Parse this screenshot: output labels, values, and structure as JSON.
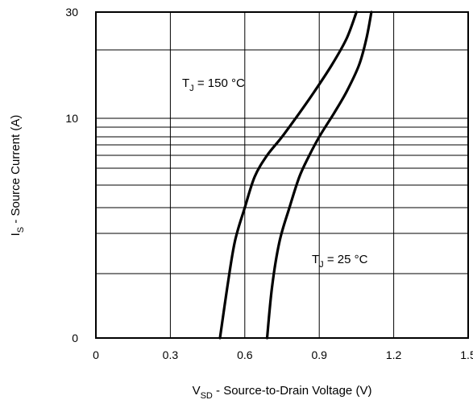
{
  "chart_data": {
    "type": "line",
    "title": "",
    "xlabel": {
      "main": "V",
      "sub": "SD",
      "rest": " - Source-to-Drain Voltage (V)"
    },
    "ylabel": {
      "main": "I",
      "sub": "S",
      "rest": " - Source Current (A)"
    },
    "xlim": [
      0,
      1.5
    ],
    "x_ticks": [
      "0",
      "0.3",
      "0.6",
      "0.9",
      "1.2",
      "1.5"
    ],
    "y_ticks": [
      "30",
      "10",
      "0"
    ],
    "y_scale_note": "log-style axis printed with labels 0, 10, 30",
    "grid": true,
    "series": [
      {
        "annotation": {
          "main": "T",
          "sub": "J",
          "rest": " = 150 °C"
        },
        "points": [
          [
            0.5,
            0
          ],
          [
            0.53,
            0.8
          ],
          [
            0.56,
            1.8
          ],
          [
            0.6,
            3.0
          ],
          [
            0.64,
            4.5
          ],
          [
            0.69,
            6.0
          ],
          [
            0.75,
            8.0
          ],
          [
            0.82,
            11.0
          ],
          [
            0.88,
            15.0
          ],
          [
            0.95,
            20.0
          ],
          [
            1.01,
            25.0
          ],
          [
            1.05,
            30.0
          ]
        ]
      },
      {
        "annotation": {
          "main": "T",
          "sub": "J",
          "rest": " = 25 °C"
        },
        "points": [
          [
            0.69,
            0
          ],
          [
            0.71,
            0.8
          ],
          [
            0.74,
            1.8
          ],
          [
            0.78,
            3.0
          ],
          [
            0.82,
            4.5
          ],
          [
            0.86,
            6.0
          ],
          [
            0.9,
            8.0
          ],
          [
            0.96,
            11.0
          ],
          [
            1.01,
            15.0
          ],
          [
            1.06,
            20.0
          ],
          [
            1.09,
            25.0
          ],
          [
            1.11,
            30.0
          ]
        ]
      }
    ]
  }
}
